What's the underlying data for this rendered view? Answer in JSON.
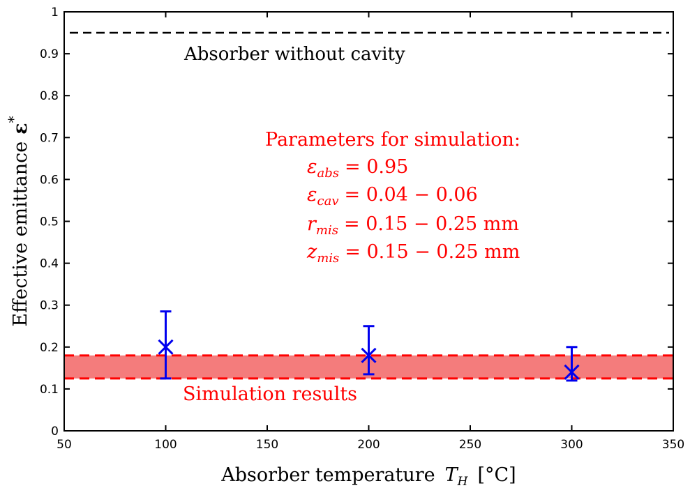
{
  "colors": {
    "axis": "#000000",
    "reference_line": "#000000",
    "simulation_band_fill": "#f47c7c",
    "simulation_band_edge": "#ff0000",
    "measurement": "#0000ee",
    "annotation_red": "#ff0000"
  },
  "chart_data": {
    "type": "scatter",
    "xlabel": "Absorber temperature",
    "xlabel_symbol": "T",
    "xlabel_symbol_sub": "H",
    "xlabel_unit": "[°C]",
    "ylabel": "Effective emittance",
    "ylabel_symbol": "ε",
    "ylabel_symbol_sup": "*",
    "xlim": [
      50,
      350
    ],
    "ylim": [
      0,
      1
    ],
    "xticks": [
      50,
      100,
      150,
      200,
      250,
      300,
      350
    ],
    "yticks": [
      0,
      0.1,
      0.2,
      0.3,
      0.4,
      0.5,
      0.6,
      0.7,
      0.8,
      0.9,
      1
    ],
    "ytick_labels": [
      "0",
      "0.1",
      "0.2",
      "0.3",
      "0.4",
      "0.5",
      "0.6",
      "0.7",
      "0.8",
      "0.9",
      "1"
    ],
    "grid": false,
    "reference_line": {
      "y": 0.95,
      "label": "Absorber without cavity"
    },
    "simulation_band": {
      "y_low": 0.125,
      "y_high": 0.18,
      "x_from": 50,
      "x_to": 350,
      "label": "Simulation results"
    },
    "measurements": [
      {
        "x": 100,
        "y": 0.2,
        "err_low": 0.125,
        "err_high": 0.285
      },
      {
        "x": 200,
        "y": 0.18,
        "err_low": 0.135,
        "err_high": 0.25
      },
      {
        "x": 300,
        "y": 0.14,
        "err_low": 0.12,
        "err_high": 0.2
      }
    ],
    "parameters": {
      "title": "Parameters for simulation:",
      "lines": [
        {
          "symbol": "ε",
          "sub": "abs",
          "value": "= 0.95"
        },
        {
          "symbol": "ε",
          "sub": "cav",
          "value": "= 0.04 − 0.06"
        },
        {
          "symbol": "r",
          "sub": "mis",
          "value": "= 0.15 − 0.25 mm"
        },
        {
          "symbol": "z",
          "sub": "mis",
          "value": "= 0.15 − 0.25 mm"
        }
      ]
    }
  }
}
